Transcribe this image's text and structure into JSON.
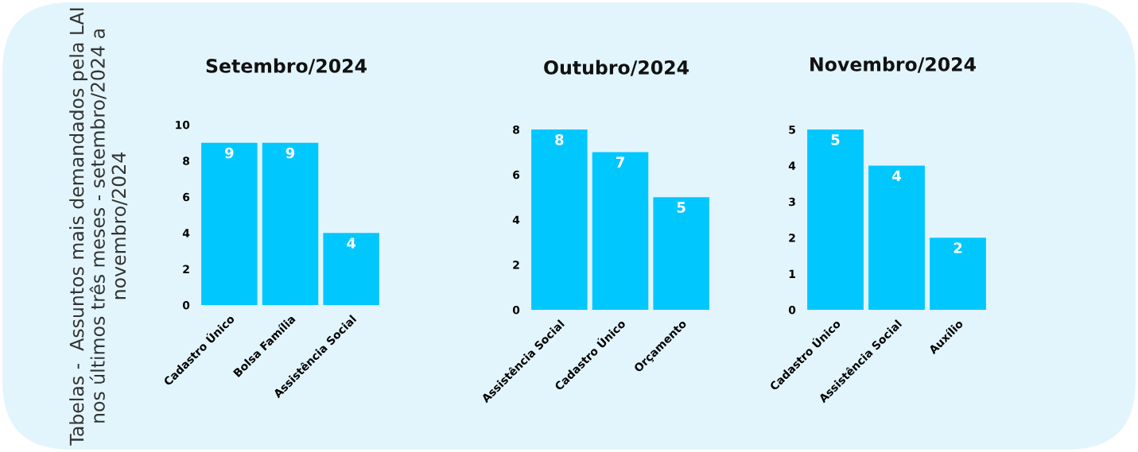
{
  "chart_data": [
    {
      "type": "bar",
      "title": "Setembro/2024",
      "categories": [
        "Cadastro Único",
        "Bolsa Família",
        "Assistência Social"
      ],
      "values": [
        9,
        9,
        4
      ],
      "color": "#00c8ff",
      "ylim": [
        0,
        10
      ],
      "yticks": [
        0,
        2,
        4,
        6,
        8,
        10
      ],
      "data_labels": true,
      "grid": false,
      "annotations": [
        "Tabelas -  Assuntos mais demandados pela LAI nos últimos três meses - setembro/2024 a novembro/2024"
      ]
    },
    {
      "type": "bar",
      "title": "Outubro/2024",
      "categories": [
        "Assistência Social",
        "Cadastro Único",
        "Orçamento"
      ],
      "values": [
        8,
        7,
        5
      ],
      "color": "#00c8ff",
      "ylim": [
        0,
        8
      ],
      "yticks": [
        0,
        2,
        4,
        6,
        8
      ],
      "data_labels": true,
      "grid": false
    },
    {
      "type": "bar",
      "title": "Novembro/2024",
      "categories": [
        "Cadastro Único",
        "Assistência Social",
        "Auxílio"
      ],
      "values": [
        5,
        4,
        2
      ],
      "color": "#00c8ff",
      "ylim": [
        0,
        5
      ],
      "yticks": [
        0,
        1,
        2,
        3,
        4,
        5
      ],
      "data_labels": true,
      "grid": false
    }
  ]
}
